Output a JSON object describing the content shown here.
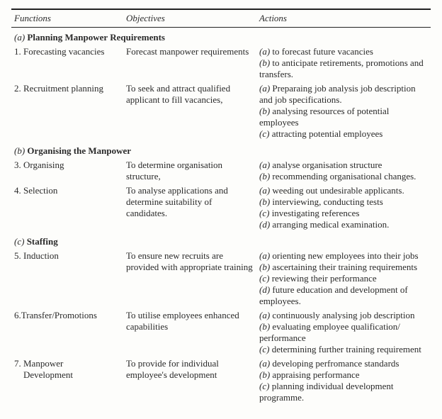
{
  "headers": {
    "functions": "Functions",
    "objectives": "Objectives",
    "actions": "Actions"
  },
  "sections": [
    {
      "tag": "(a)",
      "title": "Planning Manpower Requirements",
      "rows": [
        {
          "func": "1. Forecasting vacancies",
          "obj": "Forecast manpower requirements",
          "acts": [
            "(a) to forecast future vacancies",
            "(b) to anticipate retirements, promotions and transfers."
          ]
        },
        {
          "func": "2. Recruitment planning",
          "obj": "To seek and attract qualified applicant to fill vacancies,",
          "acts": [
            "(a) Preparaing job analysis job description and job specifications.",
            "(b) analysing resources of potential employees",
            "(c) attracting potential employees"
          ]
        }
      ]
    },
    {
      "tag": "(b)",
      "title": "Organising the Manpower",
      "rows": [
        {
          "func": "3. Organising",
          "obj": "To determine organisation structure,",
          "acts": [
            "(a) analyse organisation structure",
            "(b) recommending organisational changes."
          ]
        },
        {
          "func": "4. Selection",
          "obj": "To analyse applications and determine suitability of candidates.",
          "acts": [
            "(a) weeding out undesirable applicants.",
            "(b) interviewing, conducting tests",
            "(c) investigating references",
            "(d) arranging medical examination."
          ]
        }
      ]
    },
    {
      "tag": "(c)",
      "title": "Staffing",
      "rows": [
        {
          "func": "5. Induction",
          "obj": "To ensure new recruits are provided with appropriate training",
          "acts": [
            "(a) orienting new employees into their jobs",
            "(b) ascertaining their training requirements",
            "(c) reviewing their performance",
            "(d) future education and development of employees."
          ]
        },
        {
          "func": "6.Transfer/Promotions",
          "obj": "To utilise employees enhanced capabilities",
          "acts": [
            "(a) continuously analysing job description",
            "(b) evaluating employee qualification/ performance",
            "(c) determining further training requirement"
          ]
        },
        {
          "func": "7. Manpower Development",
          "obj": "To provide for individual employee's development",
          "acts": [
            "(a) developing perfromance standards",
            "(b) appraising performance",
            "(c) planning individual development programme."
          ]
        }
      ]
    }
  ]
}
